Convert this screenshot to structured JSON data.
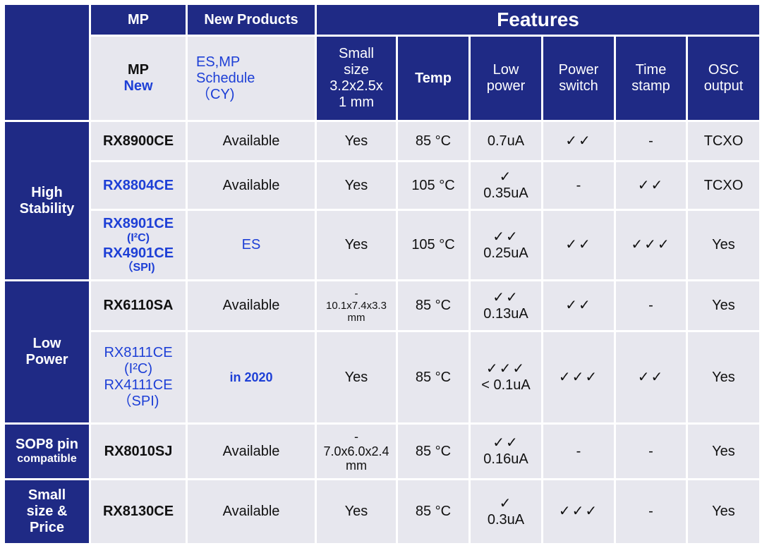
{
  "header": {
    "mp": "MP",
    "new_products": "New Products",
    "features": "Features",
    "col_mp_line1": "MP",
    "col_mp_line2": "New",
    "col_sched_line1": "ES,MP",
    "col_sched_line2": "Schedule",
    "col_sched_line3": "（CY)",
    "size_l1": "Small",
    "size_l2": "size",
    "size_l3": "3.2x2.5x",
    "size_l4": "1 mm",
    "temp": "Temp",
    "low_l1": "Low",
    "low_l2": "power",
    "pow_l1": "Power",
    "pow_l2": "switch",
    "time_l1": "Time",
    "time_l2": "stamp",
    "osc_l1": "OSC",
    "osc_l2": "output"
  },
  "groups": {
    "high_l1": "High",
    "high_l2": "Stability",
    "low_l1": "Low",
    "low_l2": "Power",
    "sop_l1": "SOP8 pin",
    "sop_l2": "compatible",
    "small_l1": "Small",
    "small_l2": "size &",
    "small_l3": "Price"
  },
  "rows": [
    {
      "name": "RX8900CE",
      "schedule": "Available",
      "size": "Yes",
      "temp": "85 °C",
      "low_chk": "",
      "low_val": "0.7uA",
      "power": "✓✓",
      "time": "-",
      "osc": "TCXO"
    },
    {
      "name": "RX8804CE",
      "schedule": "Available",
      "size": "Yes",
      "temp": "105 °C",
      "low_chk": "✓",
      "low_val": "0.35uA",
      "power": "-",
      "time": "✓✓",
      "osc": "TCXO"
    },
    {
      "name1": "RX8901CE",
      "name2": "(I²C)",
      "name3": "RX4901CE",
      "name4": "（SPI)",
      "schedule": "ES",
      "size": "Yes",
      "temp": "105 °C",
      "low_chk": "✓✓",
      "low_val": "0.25uA",
      "power": "✓✓",
      "time": "✓✓✓",
      "osc": "Yes"
    },
    {
      "name": "RX6110SA",
      "schedule": "Available",
      "size_l1": "-",
      "size_l2": "10.1x7.4x3.3",
      "size_l3": "mm",
      "temp": "85 °C",
      "low_chk": "✓✓",
      "low_val": "0.13uA",
      "power": "✓✓",
      "time": "-",
      "osc": "Yes"
    },
    {
      "name1": "RX8111CE",
      "name2": "(I²C)",
      "name3": "RX4111CE",
      "name4": "（SPI)",
      "schedule": "in 2020",
      "size": "Yes",
      "temp": "85 °C",
      "low_chk": "✓✓✓",
      "low_val": "< 0.1uA",
      "power": "✓✓✓",
      "time": "✓✓",
      "osc": "Yes"
    },
    {
      "name": "RX8010SJ",
      "schedule": "Available",
      "size_l1": "-",
      "size_l2": "7.0x6.0x2.4",
      "size_l3": "mm",
      "temp": "85 °C",
      "low_chk": "✓✓",
      "low_val": "0.16uA",
      "power": "-",
      "time": "-",
      "osc": "Yes"
    },
    {
      "name": "RX8130CE",
      "schedule": "Available",
      "size": "Yes",
      "temp": "85 °C",
      "low_chk": "✓",
      "low_val": "0.3uA",
      "power": "✓✓✓",
      "time": "-",
      "osc": "Yes"
    }
  ],
  "colors": {
    "navy": "#1f2a85",
    "light_gray": "#e7e7ee",
    "blue_text": "#1d3fd6"
  }
}
